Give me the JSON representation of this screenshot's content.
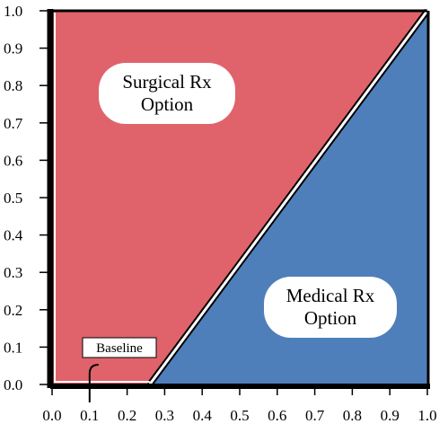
{
  "chart_data": {
    "type": "area",
    "title": "",
    "xlabel": "",
    "ylabel": "",
    "xlim": [
      0,
      1
    ],
    "ylim": [
      0,
      1
    ],
    "x_ticks": [
      "0.0",
      "0.1",
      "0.2",
      "0.3",
      "0.4",
      "0.5",
      "0.6",
      "0.7",
      "0.8",
      "0.9",
      "1.0"
    ],
    "y_ticks": [
      "0.0",
      "0.1",
      "0.2",
      "0.3",
      "0.4",
      "0.5",
      "0.6",
      "0.7",
      "0.8",
      "0.9",
      "1.0"
    ],
    "grid": false,
    "regions": [
      {
        "label_lines": [
          "Surgical Rx",
          "Option"
        ],
        "color": "#e0636b",
        "points": [
          [
            0,
            0
          ],
          [
            0.26,
            0
          ],
          [
            1.0,
            1.0
          ],
          [
            0,
            1.0
          ]
        ]
      },
      {
        "label_lines": [
          "Medical Rx",
          "Option"
        ],
        "color": "#4f7fba",
        "points": [
          [
            0.26,
            0
          ],
          [
            1.0,
            0
          ],
          [
            1.0,
            1.0
          ]
        ]
      }
    ],
    "boundary": [
      [
        0.26,
        0
      ],
      [
        1.0,
        1.0
      ]
    ],
    "annotation": {
      "text": "Baseline",
      "x": 0.1,
      "y": 0.0
    }
  }
}
